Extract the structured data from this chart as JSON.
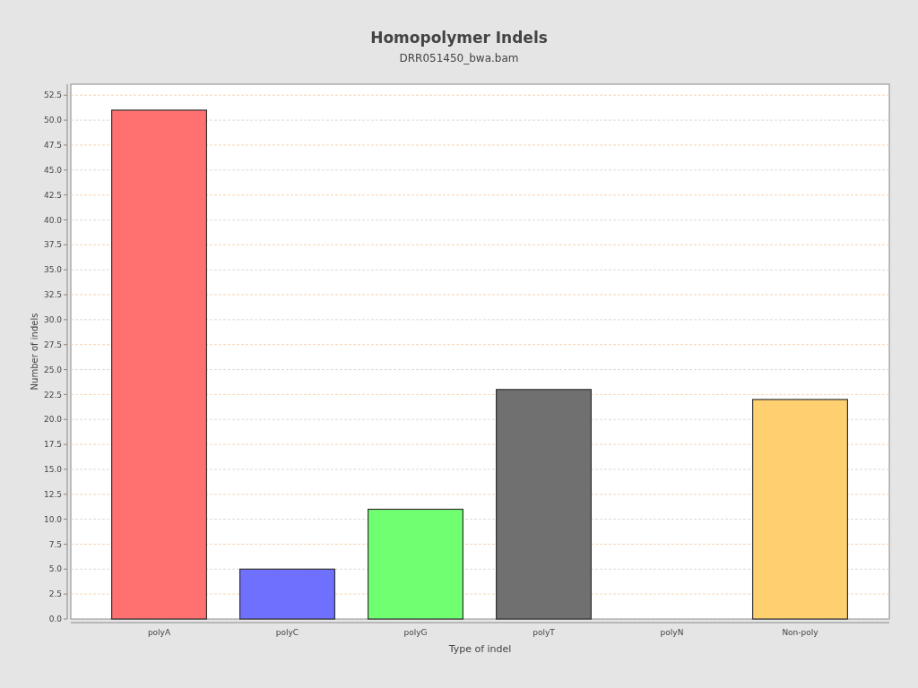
{
  "chart_data": {
    "type": "bar",
    "title": "Homopolymer Indels",
    "subtitle": "DRR051450_bwa.bam",
    "xlabel": "Type of indel",
    "ylabel": "Number of indels",
    "categories": [
      "polyA",
      "polyC",
      "polyG",
      "polyT",
      "polyN",
      "Non-poly"
    ],
    "values": [
      51,
      5,
      11,
      23,
      0,
      22
    ],
    "colors": [
      "#ff7070",
      "#7070ff",
      "#70ff70",
      "#707070",
      "#70ffff",
      "#ffd070"
    ],
    "ylim": [
      0,
      53.6
    ],
    "yticks": [
      {
        "value": 0,
        "label": "0.0"
      },
      {
        "value": 2.5,
        "label": "2.5"
      },
      {
        "value": 5,
        "label": "5.0"
      },
      {
        "value": 7.5,
        "label": "7.5"
      },
      {
        "value": 10,
        "label": "10.0"
      },
      {
        "value": 12.5,
        "label": "12.5"
      },
      {
        "value": 15,
        "label": "15.0"
      },
      {
        "value": 17.5,
        "label": "17.5"
      },
      {
        "value": 20,
        "label": "20.0"
      },
      {
        "value": 22.5,
        "label": "22.5"
      },
      {
        "value": 25,
        "label": "25.0"
      },
      {
        "value": 27.5,
        "label": "27.5"
      },
      {
        "value": 30,
        "label": "30.0"
      },
      {
        "value": 32.5,
        "label": "32.5"
      },
      {
        "value": 35,
        "label": "35.0"
      },
      {
        "value": 37.5,
        "label": "37.5"
      },
      {
        "value": 40,
        "label": "40.0"
      },
      {
        "value": 42.5,
        "label": "42.5"
      },
      {
        "value": 45,
        "label": "45.0"
      },
      {
        "value": 47.5,
        "label": "47.5"
      },
      {
        "value": 50,
        "label": "50.0"
      },
      {
        "value": 52.5,
        "label": "52.5"
      }
    ],
    "grid": "y"
  }
}
